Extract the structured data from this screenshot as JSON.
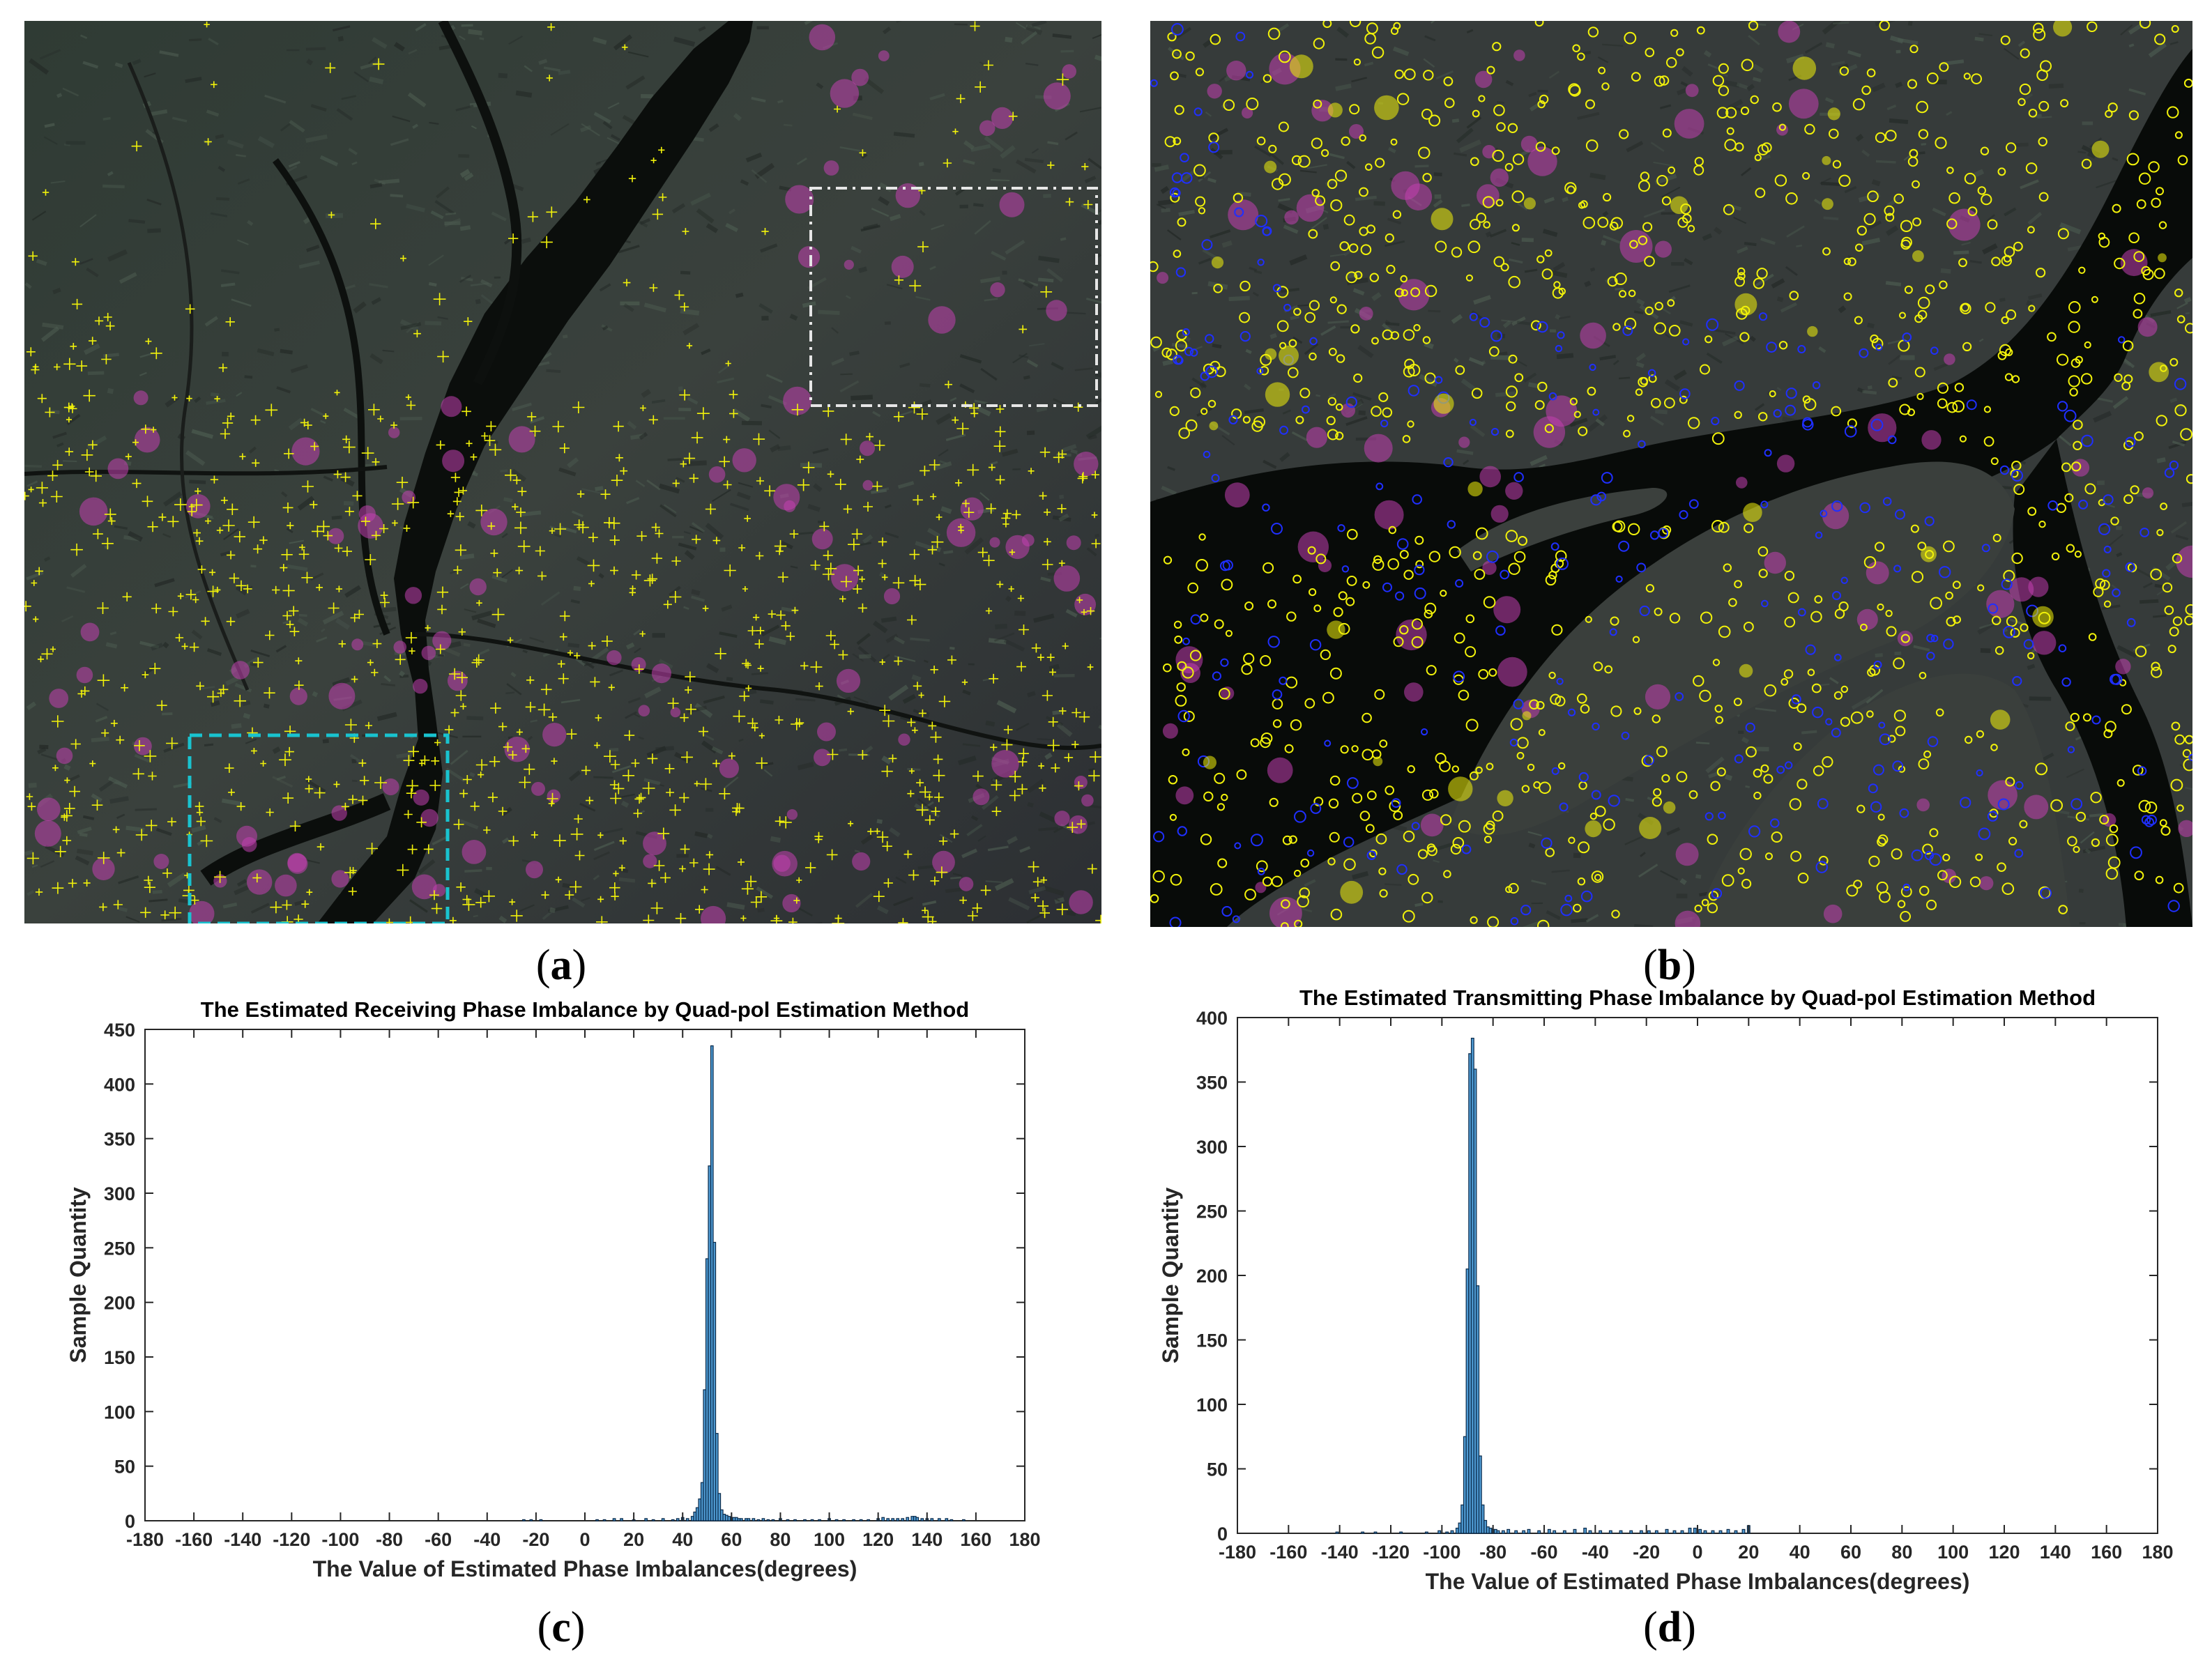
{
  "panels": {
    "a": {
      "label": "a",
      "description_scene": "sar-image"
    },
    "b": {
      "label": "b",
      "description_scene": "sar-image"
    },
    "c": {
      "label": "c"
    },
    "d": {
      "label": "d"
    }
  },
  "colors": {
    "bar_fill": "#4f9bd3",
    "bar_stroke": "#0a2a4a",
    "roi_white": "#e6e6e6",
    "roi_cyan": "#19c3cf",
    "marker_yellow": "#f2f20a",
    "marker_magenta": "#c23fb0",
    "marker_blue": "#1f2fff"
  },
  "chart_data": [
    {
      "id": "c",
      "type": "bar",
      "title": "The Estimated Receiving Phase Imbalance by Quad-pol Estimation Method",
      "xlabel": "The Value of Estimated Phase Imbalances(degrees)",
      "ylabel": "Sample Quantity",
      "xlim": [
        -180,
        180
      ],
      "ylim": [
        0,
        450
      ],
      "xticks": [
        -180,
        -160,
        -140,
        -120,
        -100,
        -80,
        -60,
        -40,
        -20,
        0,
        20,
        40,
        60,
        80,
        100,
        120,
        140,
        160,
        180
      ],
      "yticks": [
        0,
        50,
        100,
        150,
        200,
        250,
        300,
        350,
        400,
        450
      ],
      "grid": false,
      "bin_width": 1,
      "x": [
        -25,
        -22,
        -18,
        5,
        8,
        12,
        15,
        20,
        25,
        28,
        32,
        36,
        38,
        40,
        42,
        44,
        45,
        46,
        47,
        48,
        49,
        50,
        51,
        52,
        53,
        54,
        55,
        56,
        57,
        58,
        59,
        60,
        61,
        62,
        63,
        64,
        66,
        67,
        69,
        71,
        73,
        75,
        77,
        80,
        83,
        86,
        90,
        93,
        96,
        100,
        103,
        106,
        110,
        113,
        116,
        120,
        122,
        124,
        126,
        128,
        130,
        132,
        134,
        135,
        136,
        138,
        140,
        142,
        145,
        148,
        150,
        155
      ],
      "values": [
        1,
        1,
        1,
        1,
        1,
        2,
        2,
        1,
        2,
        1,
        2,
        1,
        2,
        3,
        2,
        4,
        8,
        12,
        20,
        35,
        120,
        240,
        325,
        435,
        255,
        80,
        25,
        10,
        6,
        5,
        4,
        3,
        3,
        3,
        2,
        2,
        2,
        2,
        2,
        1,
        2,
        1,
        1,
        2,
        1,
        1,
        1,
        1,
        1,
        2,
        1,
        1,
        1,
        1,
        1,
        2,
        3,
        2,
        2,
        2,
        2,
        3,
        4,
        4,
        3,
        2,
        2,
        2,
        2,
        2,
        1,
        1
      ]
    },
    {
      "id": "d",
      "type": "bar",
      "title": "The Estimated Transmitting Phase Imbalance by Quad-pol Estimation Method",
      "xlabel": "The Value of Estimated Phase Imbalances(degrees)",
      "ylabel": "Sample Quantity",
      "xlim": [
        -180,
        180
      ],
      "ylim": [
        0,
        400
      ],
      "xticks": [
        -180,
        -160,
        -140,
        -120,
        -100,
        -80,
        -60,
        -40,
        -20,
        0,
        20,
        40,
        60,
        80,
        100,
        120,
        140,
        160,
        180
      ],
      "yticks": [
        0,
        50,
        100,
        150,
        200,
        250,
        300,
        350,
        400
      ],
      "grid": false,
      "bin_width": 1,
      "x": [
        -141,
        -131,
        -126,
        -116,
        -106,
        -101,
        -98,
        -96,
        -94,
        -93,
        -92,
        -91,
        -90,
        -89,
        -88,
        -87,
        -86,
        -85,
        -84,
        -83,
        -82,
        -81,
        -80,
        -79,
        -78,
        -76,
        -74,
        -71,
        -68,
        -66,
        -62,
        -58,
        -56,
        -52,
        -48,
        -44,
        -42,
        -38,
        -34,
        -30,
        -26,
        -22,
        -19,
        -16,
        -12,
        -9,
        -6,
        -3,
        -1,
        1,
        3,
        6,
        9,
        12,
        15,
        18,
        20
      ],
      "values": [
        1,
        1,
        1,
        1,
        1,
        2,
        1,
        2,
        4,
        8,
        22,
        75,
        205,
        372,
        384,
        360,
        192,
        60,
        22,
        10,
        5,
        4,
        3,
        3,
        2,
        2,
        3,
        2,
        2,
        3,
        2,
        3,
        2,
        2,
        3,
        4,
        2,
        2,
        2,
        2,
        2,
        2,
        2,
        2,
        3,
        2,
        2,
        4,
        4,
        3,
        2,
        2,
        2,
        3,
        2,
        3,
        6
      ]
    }
  ]
}
